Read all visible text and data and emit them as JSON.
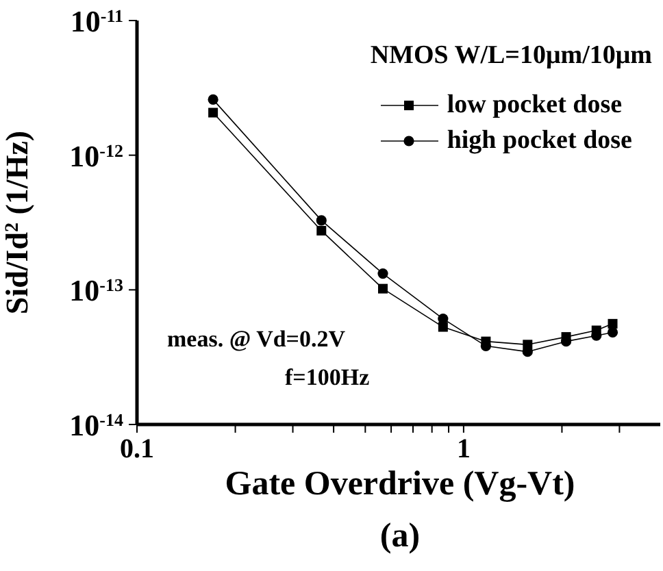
{
  "chart_data": {
    "type": "line",
    "xlabel": "Gate Overdrive (Vg-Vt)",
    "ylabel": "Sid/Id$^{2}$ (1/Hz)",
    "log": "xy",
    "legend": "top right",
    "legend_title": "NMOS   W/L=10μm/10μm",
    "line_style": "solid",
    "grid": false,
    "x": [
      0.171,
      0.367,
      0.566,
      0.865,
      1.17,
      1.57,
      2.06,
      2.55,
      2.86
    ],
    "xlim": [
      0.1,
      4
    ],
    "ylim": [
      1e-14,
      1e-11
    ],
    "xticks": [
      0.1,
      {
        "value": 0.2,
        "label": null
      },
      {
        "value": 0.3,
        "label": null
      },
      {
        "value": 0.4,
        "label": null
      },
      {
        "value": 0.5,
        "label": null
      },
      {
        "value": 0.6,
        "label": null
      },
      {
        "value": 0.7,
        "label": null
      },
      {
        "value": 0.8,
        "label": null
      },
      {
        "value": 0.9,
        "label": null
      },
      1,
      {
        "value": 2,
        "label": null
      },
      {
        "value": 3,
        "label": null
      }
    ],
    "yticks": [
      {
        "value": 1e-14,
        "label": "10$^{-14}$"
      },
      {
        "value": 1e-13,
        "label": "10$^{-13}$"
      },
      {
        "value": 1e-12,
        "label": "10$^{-12}$"
      },
      {
        "value": 1e-11,
        "label": "10$^{-11}$"
      }
    ],
    "series": [
      {
        "name": "low pocket dose",
        "color": "#000000",
        "marker": "square",
        "values": [
          2.07e-12,
          2.75e-13,
          1.02e-13,
          5.3e-14,
          4.14e-14,
          3.92e-14,
          4.47e-14,
          5e-14,
          5.6e-14
        ]
      },
      {
        "name": "high pocket dose",
        "color": "#000000",
        "marker": "circle",
        "values": [
          2.59e-12,
          3.28e-13,
          1.32e-13,
          6.1e-14,
          3.83e-14,
          3.47e-14,
          4.14e-14,
          4.57e-14,
          4.83e-14
        ]
      }
    ],
    "annotations": [
      "meas. @  Vd=0.2V",
      "f=100Hz",
      "(a)"
    ]
  }
}
